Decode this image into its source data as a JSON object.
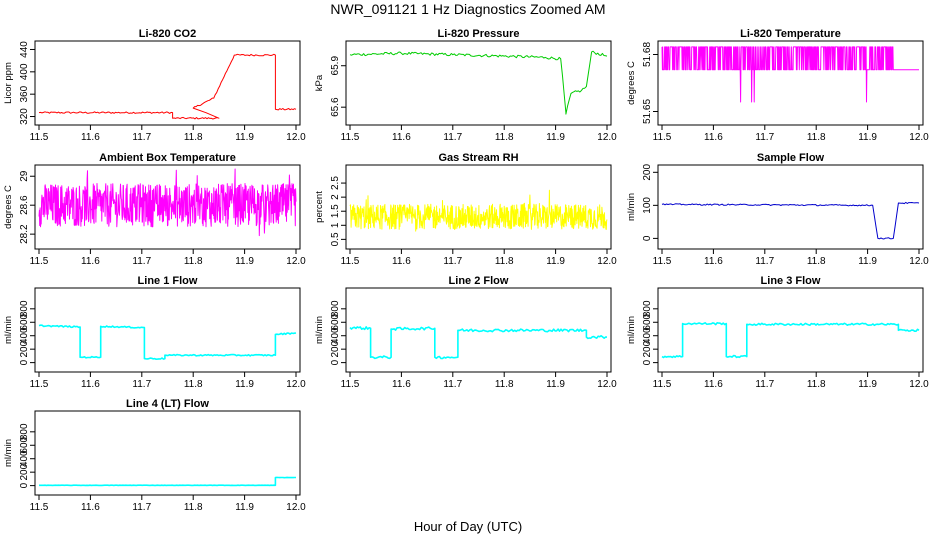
{
  "figure": {
    "title": "NWR_091121  1 Hz Diagnostics Zoomed AM",
    "xlabel": "Hour of Day (UTC)"
  },
  "chart_data": [
    {
      "id": "co2",
      "type": "line",
      "title": "Li-820 CO2",
      "ylabel": "Licor ppm",
      "color": "#ff0000",
      "xlim": [
        11.5,
        12.0
      ],
      "xticks": [
        11.5,
        11.6,
        11.7,
        11.8,
        11.9,
        12.0
      ],
      "ylim": [
        312,
        448
      ],
      "yticks": [
        320,
        360,
        400,
        440
      ],
      "style": "line",
      "series": {
        "x": [
          11.5,
          11.76,
          11.76,
          11.85,
          11.85,
          11.8,
          11.8,
          11.84,
          11.84,
          11.88,
          11.88,
          11.96,
          11.96,
          12.0
        ],
        "y": [
          327,
          327,
          317,
          317,
          317,
          335,
          335,
          353,
          353,
          430,
          430,
          430,
          333,
          333
        ]
      },
      "noise": 1.5
    },
    {
      "id": "pressure",
      "type": "line",
      "title": "Li-820 Pressure",
      "ylabel": "kPa",
      "color": "#00cc00",
      "xlim": [
        11.5,
        12.0
      ],
      "xticks": [
        11.5,
        11.6,
        11.7,
        11.8,
        11.9,
        12.0
      ],
      "ylim": [
        65.5,
        66.05
      ],
      "yticks": [
        65.6,
        65.9
      ],
      "style": "line",
      "series": {
        "x": [
          11.5,
          11.6,
          11.7,
          11.8,
          11.88,
          11.91,
          11.92,
          11.92,
          11.93,
          11.95,
          11.96,
          11.97,
          12.0
        ],
        "y": [
          65.98,
          65.99,
          65.98,
          65.97,
          65.96,
          65.95,
          65.56,
          65.55,
          65.7,
          65.72,
          65.75,
          66.0,
          65.97
        ]
      },
      "noise": 0.01
    },
    {
      "id": "li820temp",
      "type": "line",
      "title": "Li-820 Temperature",
      "ylabel": "degrees C",
      "color": "#ff00ff",
      "xlim": [
        11.5,
        12.0
      ],
      "xticks": [
        11.5,
        11.6,
        11.7,
        11.8,
        11.9,
        12.0
      ],
      "ylim": [
        51.645,
        51.685
      ],
      "yticks": [
        51.65,
        51.68
      ],
      "style": "toggle",
      "levels": [
        51.672,
        51.684,
        51.655
      ],
      "series": {
        "x": [
          11.5,
          12.0
        ],
        "y": [
          51.672,
          51.672
        ]
      }
    },
    {
      "id": "ambient",
      "type": "line",
      "title": "Ambient Box Temperature",
      "ylabel": "degrees C",
      "color": "#ff00ff",
      "xlim": [
        11.5,
        12.0
      ],
      "xticks": [
        11.5,
        11.6,
        11.7,
        11.8,
        11.9,
        12.0
      ],
      "ylim": [
        28.05,
        29.1
      ],
      "yticks": [
        28.2,
        28.6,
        29.0
      ],
      "style": "noise",
      "series": {
        "x": [
          11.5,
          12.0
        ],
        "y": [
          28.6,
          28.6
        ]
      },
      "noise": 0.3
    },
    {
      "id": "rh",
      "type": "line",
      "title": "Gas Stream RH",
      "ylabel": "percent",
      "color": "#ffff00",
      "xlim": [
        11.5,
        12.0
      ],
      "xticks": [
        11.5,
        11.6,
        11.7,
        11.8,
        11.9,
        12.0
      ],
      "ylim": [
        0.3,
        3.0
      ],
      "yticks": [
        0.5,
        1.0,
        1.5,
        2.0,
        2.5
      ],
      "style": "noise",
      "series": {
        "x": [
          11.5,
          12.0
        ],
        "y": [
          1.3,
          1.3
        ]
      },
      "noise": 0.45
    },
    {
      "id": "sample",
      "type": "line",
      "title": "Sample Flow",
      "ylabel": "ml/min",
      "color": "#0000cc",
      "xlim": [
        11.5,
        12.0
      ],
      "xticks": [
        11.5,
        11.6,
        11.7,
        11.8,
        11.9,
        12.0
      ],
      "ylim": [
        -20,
        210
      ],
      "yticks": [
        0,
        100,
        200
      ],
      "style": "line",
      "series": {
        "x": [
          11.5,
          11.91,
          11.92,
          11.95,
          11.96,
          12.0
        ],
        "y": [
          103,
          100,
          0,
          0,
          107,
          107
        ]
      },
      "noise": 2
    },
    {
      "id": "line1",
      "type": "line",
      "title": "Line 1 Flow",
      "ylabel": "ml/min",
      "color": "#00ffff",
      "xlim": [
        11.5,
        12.0
      ],
      "xticks": [
        11.5,
        11.6,
        11.7,
        11.8,
        11.9,
        12.0
      ],
      "ylim": [
        -80,
        1050
      ],
      "yticks": [
        0,
        200,
        400,
        600,
        800
      ],
      "style": "line",
      "series": {
        "x": [
          11.5,
          11.58,
          11.58,
          11.62,
          11.62,
          11.705,
          11.705,
          11.745,
          11.745,
          11.96,
          11.96,
          12.0
        ],
        "y": [
          550,
          530,
          80,
          80,
          540,
          520,
          60,
          60,
          110,
          110,
          420,
          440
        ]
      },
      "noise": 10
    },
    {
      "id": "line2",
      "type": "line",
      "title": "Line 2 Flow",
      "ylabel": "ml/min",
      "color": "#00ffff",
      "xlim": [
        11.5,
        12.0
      ],
      "xticks": [
        11.5,
        11.6,
        11.7,
        11.8,
        11.9,
        12.0
      ],
      "ylim": [
        -80,
        1050
      ],
      "yticks": [
        0,
        200,
        400,
        600,
        800
      ],
      "style": "line",
      "series": {
        "x": [
          11.5,
          11.54,
          11.54,
          11.58,
          11.58,
          11.665,
          11.665,
          11.71,
          11.71,
          11.96,
          11.96,
          12.0
        ],
        "y": [
          520,
          510,
          80,
          80,
          500,
          510,
          80,
          80,
          480,
          480,
          380,
          380
        ]
      },
      "noise": 20
    },
    {
      "id": "line3",
      "type": "line",
      "title": "Line 3 Flow",
      "ylabel": "ml/min",
      "color": "#00ffff",
      "xlim": [
        11.5,
        12.0
      ],
      "xticks": [
        11.5,
        11.6,
        11.7,
        11.8,
        11.9,
        12.0
      ],
      "ylim": [
        -80,
        1050
      ],
      "yticks": [
        0,
        200,
        400,
        600,
        800
      ],
      "style": "line",
      "series": {
        "x": [
          11.5,
          11.54,
          11.54,
          11.625,
          11.625,
          11.665,
          11.665,
          11.96,
          11.96,
          12.0
        ],
        "y": [
          90,
          90,
          580,
          580,
          90,
          90,
          570,
          570,
          480,
          480
        ]
      },
      "noise": 15
    },
    {
      "id": "line4",
      "type": "line",
      "title": "Line 4 (LT) Flow",
      "ylabel": "ml/min",
      "color": "#00ffff",
      "xlim": [
        11.5,
        12.0
      ],
      "xticks": [
        11.5,
        11.6,
        11.7,
        11.8,
        11.9,
        12.0
      ],
      "ylim": [
        -80,
        1050
      ],
      "yticks": [
        0,
        200,
        400,
        600,
        800
      ],
      "style": "line",
      "series": {
        "x": [
          11.5,
          11.96,
          11.96,
          12.0
        ],
        "y": [
          5,
          5,
          120,
          120
        ]
      },
      "noise": 2
    }
  ]
}
